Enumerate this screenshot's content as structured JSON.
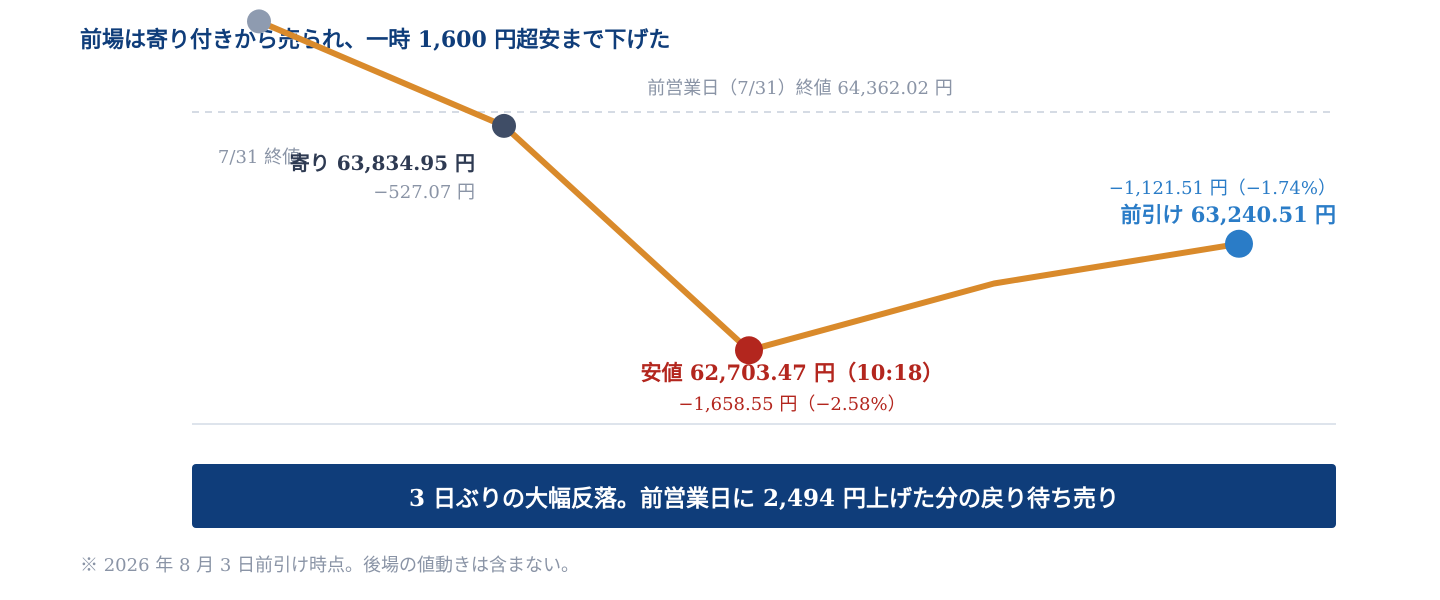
{
  "headline": "前場は寄り付きから売られ、一時 1,600 円超安まで下げた",
  "banner": "3 日ぶりの大幅反落。前営業日に 2,494 円上げた分の戻り待ち売り",
  "footnote": "※ 2026 年 8 月 3 日前引け時点。後場の値動きは含まない。",
  "colors": {
    "line": "#d98a2b",
    "navy": "#0f3d7a",
    "prev": "#8e9bb0",
    "open": "#3f4d66",
    "low": "#b3261e",
    "close": "#2a7cc7",
    "muted": "#8a94a6"
  },
  "chart_data": {
    "type": "line",
    "series": [
      {
        "values": [
          {
            "x": 0,
            "y": 64362.02
          },
          {
            "x": 1,
            "y": 63834.95
          },
          {
            "x": 2,
            "y": 62703.47
          },
          {
            "x": 3,
            "y": 63040.0
          },
          {
            "x": 4,
            "y": 63240.51
          }
        ]
      }
    ],
    "ylim": [
      62150,
      64470
    ],
    "reference_line": {
      "value": 64362.02,
      "label": "前営業日（7/31）終値 64,362.02 円"
    },
    "annotations": {
      "prev_close": {
        "label": "7/31 終値"
      },
      "open": {
        "label": "寄り 63,834.95 円",
        "sub": "−527.07 円"
      },
      "low": {
        "label": "安値 62,703.47 円（10:18）",
        "sub": "−1,658.55 円（−2.58%）"
      },
      "close": {
        "label": "前引け 63,240.51 円",
        "sub": "−1,121.51 円（−1.74%）"
      }
    }
  }
}
